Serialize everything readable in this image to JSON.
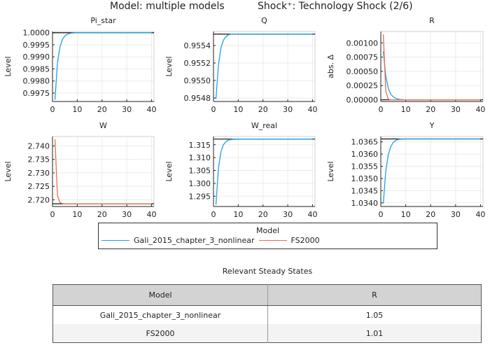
{
  "header": {
    "model_title": "Model: multiple models",
    "shock_title": "Shock⁺: Technology Shock  (2/6)"
  },
  "colors": {
    "Gali_2015_chapter_3_nonlinear": "#1ea0e6",
    "FS2000": "#e2704f",
    "steady_state_line": "#111111",
    "grid": "#ebebeb"
  },
  "legend": {
    "title": "Model",
    "items": [
      {
        "label": "Gali_2015_chapter_3_nonlinear",
        "color": "#1ea0e6"
      },
      {
        "label": "FS2000",
        "color": "#e2704f"
      }
    ]
  },
  "table": {
    "title": "Relevant Steady States",
    "headers": [
      "Model",
      "R"
    ],
    "rows": [
      [
        "Gali_2015_chapter_3_nonlinear",
        "1.05"
      ],
      [
        "FS2000",
        "1.01"
      ]
    ]
  },
  "chart_data": [
    {
      "type": "line",
      "title": "Pi_star",
      "xlabel": "",
      "ylabel": "Level",
      "xlim": [
        0,
        41
      ],
      "ylim": [
        0.99715,
        1.00005
      ],
      "xticks": [
        0,
        10,
        20,
        30,
        40
      ],
      "yticks": [
        0.9975,
        0.998,
        0.9985,
        0.999,
        0.9995,
        1.0
      ],
      "ytick_labels": [
        "0.9975",
        "0.9980",
        "0.9985",
        "0.9990",
        "0.9995",
        "1.0000"
      ],
      "steady_state": 1.0,
      "grid": true,
      "series": [
        {
          "name": "Gali_2015_chapter_3_nonlinear",
          "x": [
            1,
            2,
            3,
            4,
            5,
            6,
            7,
            8,
            10,
            15,
            20,
            30,
            40
          ],
          "values": [
            0.99722,
            0.99875,
            0.9994,
            0.99972,
            0.99987,
            0.99994,
            0.99997,
            0.99999,
            1.0,
            1.0,
            1.0,
            1.0,
            1.0
          ]
        }
      ]
    },
    {
      "type": "line",
      "title": "Q",
      "xlabel": "",
      "ylabel": "Level",
      "xlim": [
        0,
        41
      ],
      "ylim": [
        0.95476,
        0.95556
      ],
      "xticks": [
        0,
        10,
        20,
        30,
        40
      ],
      "yticks": [
        0.9548,
        0.955,
        0.9552,
        0.9554
      ],
      "ytick_labels": [
        "0.9548",
        "0.9550",
        "0.9552",
        "0.9554"
      ],
      "steady_state": 0.95553,
      "grid": true,
      "series": [
        {
          "name": "Gali_2015_chapter_3_nonlinear",
          "x": [
            1,
            2,
            3,
            4,
            5,
            6,
            7,
            8,
            10,
            15,
            20,
            30,
            40
          ],
          "values": [
            0.95479,
            0.95518,
            0.95537,
            0.95546,
            0.9555,
            0.95552,
            0.95553,
            0.95553,
            0.95553,
            0.95553,
            0.95553,
            0.95553,
            0.95553
          ]
        }
      ]
    },
    {
      "type": "line",
      "title": "R",
      "xlabel": "",
      "ylabel": "abs. Δ",
      "xlim": [
        0,
        41
      ],
      "ylim": [
        -3e-05,
        0.0012
      ],
      "xticks": [
        0,
        10,
        20,
        30,
        40
      ],
      "yticks": [
        0.0,
        0.00025,
        0.0005,
        0.00075,
        0.001
      ],
      "ytick_labels": [
        "0.00000",
        "0.00025",
        "0.00050",
        "0.00075",
        "0.00100"
      ],
      "steady_state": 0.0,
      "grid": true,
      "series": [
        {
          "name": "Gali_2015_chapter_3_nonlinear",
          "x": [
            1,
            2,
            3,
            4,
            5,
            6,
            7,
            8,
            10,
            15,
            20,
            30,
            40
          ],
          "values": [
            0.00085,
            0.00042,
            0.0002,
            0.0001,
            5e-05,
            2.5e-05,
            1.2e-05,
            6e-06,
            0.0,
            0.0,
            0.0,
            0.0,
            0.0
          ]
        },
        {
          "name": "FS2000",
          "x": [
            1,
            2,
            3,
            4,
            5,
            10,
            20,
            30,
            40
          ],
          "values": [
            0.00115,
            0.00015,
            1e-05,
            0.0,
            0.0,
            0.0,
            0.0,
            0.0,
            0.0
          ]
        }
      ]
    },
    {
      "type": "line",
      "title": "W",
      "xlabel": "",
      "ylabel": "Level",
      "xlim": [
        0,
        41
      ],
      "ylim": [
        2.7175,
        2.7435
      ],
      "xticks": [
        0,
        10,
        20,
        30,
        40
      ],
      "yticks": [
        2.72,
        2.725,
        2.73,
        2.735,
        2.74
      ],
      "ytick_labels": [
        "2.720",
        "2.725",
        "2.730",
        "2.735",
        "2.740"
      ],
      "steady_state": 2.7185,
      "grid": true,
      "series": [
        {
          "name": "FS2000",
          "x": [
            1,
            2,
            3,
            4,
            5,
            10,
            20,
            30,
            40
          ],
          "values": [
            2.7425,
            2.7215,
            2.719,
            2.7186,
            2.7185,
            2.7185,
            2.7185,
            2.7185,
            2.7185
          ]
        }
      ]
    },
    {
      "type": "line",
      "title": "W_real",
      "xlabel": "",
      "ylabel": "Level",
      "xlim": [
        0,
        41
      ],
      "ylim": [
        1.291,
        1.3182
      ],
      "xticks": [
        0,
        10,
        20,
        30,
        40
      ],
      "yticks": [
        1.295,
        1.3,
        1.305,
        1.31,
        1.315
      ],
      "ytick_labels": [
        "1.295",
        "1.300",
        "1.305",
        "1.310",
        "1.315"
      ],
      "steady_state": 1.3172,
      "grid": true,
      "series": [
        {
          "name": "Gali_2015_chapter_3_nonlinear",
          "x": [
            1,
            2,
            3,
            4,
            5,
            6,
            7,
            8,
            10,
            15,
            20,
            30,
            40
          ],
          "values": [
            1.2917,
            1.306,
            1.3122,
            1.315,
            1.3162,
            1.3168,
            1.317,
            1.3171,
            1.3172,
            1.3172,
            1.3172,
            1.3172,
            1.3172
          ]
        }
      ]
    },
    {
      "type": "line",
      "title": "Y",
      "xlabel": "",
      "ylabel": "Level",
      "xlim": [
        0,
        41
      ],
      "ylim": [
        1.03385,
        1.03672
      ],
      "xticks": [
        0,
        10,
        20,
        30,
        40
      ],
      "yticks": [
        1.034,
        1.0345,
        1.035,
        1.0355,
        1.036,
        1.0365
      ],
      "ytick_labels": [
        "1.0340",
        "1.0345",
        "1.0350",
        "1.0355",
        "1.0360",
        "1.0365"
      ],
      "steady_state": 1.03662,
      "grid": true,
      "series": [
        {
          "name": "Gali_2015_chapter_3_nonlinear",
          "x": [
            1,
            2,
            3,
            4,
            5,
            6,
            7,
            8,
            10,
            15,
            20,
            30,
            40
          ],
          "values": [
            1.03397,
            1.0353,
            1.03598,
            1.0363,
            1.03648,
            1.03656,
            1.0366,
            1.03661,
            1.03662,
            1.03662,
            1.03662,
            1.03662,
            1.03662
          ]
        }
      ]
    }
  ]
}
